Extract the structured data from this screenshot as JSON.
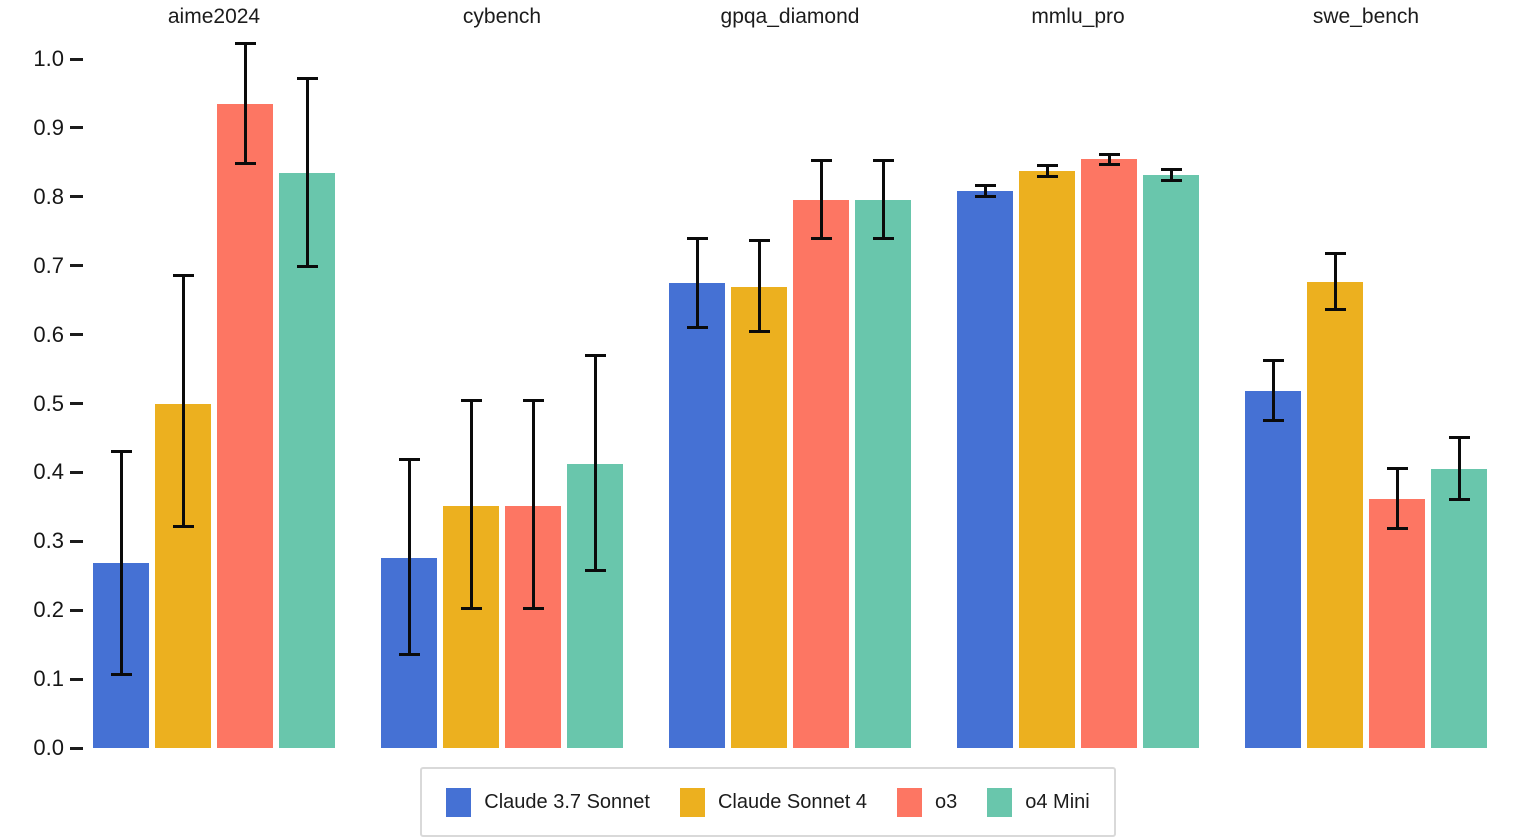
{
  "chart_data": {
    "type": "bar",
    "title": "",
    "xlabel": "",
    "ylabel": "",
    "groups": [
      "aime2024",
      "cybench",
      "gpqa_diamond",
      "mmlu_pro",
      "swe_bench"
    ],
    "series": [
      {
        "name": "Claude 3.7 Sonnet",
        "color": "#4571d4",
        "values": [
          0.268,
          0.276,
          0.675,
          0.808,
          0.518
        ],
        "err_low": [
          0.106,
          0.136,
          0.61,
          0.8,
          0.475
        ],
        "err_high": [
          0.431,
          0.418,
          0.74,
          0.816,
          0.562
        ]
      },
      {
        "name": "Claude Sonnet 4",
        "color": "#ecb01f",
        "values": [
          0.5,
          0.351,
          0.669,
          0.837,
          0.676
        ],
        "err_low": [
          0.321,
          0.202,
          0.604,
          0.829,
          0.637
        ],
        "err_high": [
          0.686,
          0.504,
          0.736,
          0.845,
          0.718
        ]
      },
      {
        "name": "o3",
        "color": "#fd7663",
        "values": [
          0.935,
          0.351,
          0.795,
          0.855,
          0.361
        ],
        "err_low": [
          0.848,
          0.202,
          0.74,
          0.847,
          0.319
        ],
        "err_high": [
          1.022,
          0.504,
          0.853,
          0.862,
          0.405
        ]
      },
      {
        "name": "o4 Mini",
        "color": "#69c6ac",
        "values": [
          0.835,
          0.412,
          0.795,
          0.832,
          0.405
        ],
        "err_low": [
          0.699,
          0.257,
          0.74,
          0.824,
          0.36
        ],
        "err_high": [
          0.972,
          0.569,
          0.853,
          0.839,
          0.45
        ]
      }
    ],
    "yticks": [
      "0.0",
      "0.1",
      "0.2",
      "0.3",
      "0.4",
      "0.5",
      "0.6",
      "0.7",
      "0.8",
      "0.9",
      "1.0"
    ],
    "ylim": [
      0.0,
      1.05
    ],
    "grid": false,
    "error_bars": true,
    "legend_position": "bottom",
    "background_color": "#ffffff",
    "text_color": "#1c1c1c",
    "error_bar_color": "#0b0b0b"
  }
}
